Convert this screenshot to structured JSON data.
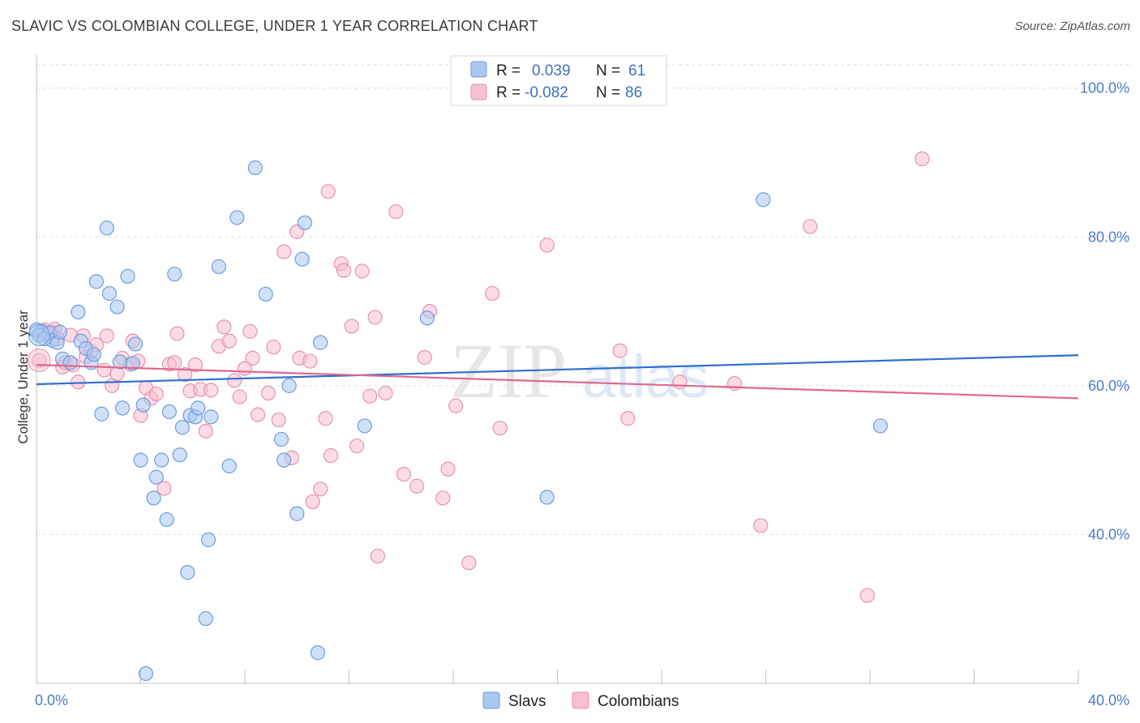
{
  "title": "SLAVIC VS COLOMBIAN COLLEGE, UNDER 1 YEAR CORRELATION CHART",
  "source": "Source: ZipAtlas.com",
  "watermark": {
    "zip": "ZIP",
    "atlas": "atlas"
  },
  "legend": {
    "rows": [
      {
        "r_label": "R =",
        "r_value": "0.039",
        "n_label": "N =",
        "n_value": "61"
      },
      {
        "r_label": "R =",
        "r_value": "-0.082",
        "n_label": "N =",
        "n_value": "86"
      }
    ]
  },
  "bottom_legend": [
    "Slavs",
    "Colombians"
  ],
  "colors": {
    "slavs_fill": "#a9c8f0",
    "slavs_stroke": "#6d9be0",
    "slavs_line": "#2f6fcd",
    "colombians_fill": "#f7bfd0",
    "colombians_stroke": "#e891ad",
    "colombians_line": "#e0678f",
    "grid": "#dcdcdc",
    "tick_text": "#4a7cc9"
  },
  "chart_data": {
    "type": "scatter",
    "title": "SLAVIC VS COLOMBIAN COLLEGE, UNDER 1 YEAR CORRELATION CHART",
    "xlabel": "",
    "ylabel": "College, Under 1 year",
    "xlim": [
      0,
      40
    ],
    "ylim": [
      20,
      104
    ],
    "x_tick_labels": [
      "0.0%",
      "40.0%"
    ],
    "y_ticks": [
      40,
      60,
      80,
      100
    ],
    "y_tick_labels": [
      "40.0%",
      "60.0%",
      "80.0%",
      "100.0%"
    ],
    "grid": true,
    "legend_position": "top-center",
    "series": [
      {
        "name": "Slavs",
        "r": 0.039,
        "n": 61,
        "trend": {
          "x": [
            0,
            40
          ],
          "y": [
            60.2,
            64.1
          ]
        },
        "points": [
          [
            0.2,
            67.3
          ],
          [
            0.5,
            67.1
          ],
          [
            0.6,
            66.1
          ],
          [
            0.8,
            65.8
          ],
          [
            0.9,
            67.2
          ],
          [
            1.0,
            63.6
          ],
          [
            1.3,
            63.1
          ],
          [
            1.6,
            69.9
          ],
          [
            1.7,
            66.0
          ],
          [
            1.9,
            65.0
          ],
          [
            2.1,
            63.1
          ],
          [
            2.2,
            64.2
          ],
          [
            2.3,
            74.0
          ],
          [
            2.5,
            56.2
          ],
          [
            2.7,
            81.2
          ],
          [
            2.8,
            72.4
          ],
          [
            3.1,
            70.6
          ],
          [
            3.2,
            63.2
          ],
          [
            3.3,
            57.0
          ],
          [
            3.5,
            74.7
          ],
          [
            3.7,
            63.0
          ],
          [
            3.8,
            65.6
          ],
          [
            4.0,
            50.0
          ],
          [
            4.1,
            57.4
          ],
          [
            4.2,
            21.3
          ],
          [
            4.5,
            44.9
          ],
          [
            4.6,
            47.7
          ],
          [
            4.8,
            50.0
          ],
          [
            5.0,
            42.0
          ],
          [
            5.1,
            56.5
          ],
          [
            5.3,
            75.0
          ],
          [
            5.5,
            50.7
          ],
          [
            5.6,
            54.4
          ],
          [
            5.8,
            34.9
          ],
          [
            5.9,
            56.0
          ],
          [
            6.1,
            55.8
          ],
          [
            6.2,
            57.0
          ],
          [
            6.5,
            28.7
          ],
          [
            6.6,
            39.3
          ],
          [
            6.7,
            55.8
          ],
          [
            7.0,
            76.0
          ],
          [
            7.4,
            49.2
          ],
          [
            7.7,
            82.6
          ],
          [
            8.4,
            89.3
          ],
          [
            8.8,
            72.3
          ],
          [
            9.4,
            52.8
          ],
          [
            9.5,
            50.0
          ],
          [
            9.7,
            60.0
          ],
          [
            10.0,
            42.8
          ],
          [
            10.2,
            77.0
          ],
          [
            10.3,
            81.9
          ],
          [
            10.8,
            24.1
          ],
          [
            10.9,
            65.8
          ],
          [
            12.6,
            54.6
          ],
          [
            15.0,
            69.1
          ],
          [
            19.6,
            45.0
          ],
          [
            27.9,
            85.0
          ],
          [
            32.4,
            54.6
          ],
          [
            0.0,
            67.5
          ],
          [
            0.1,
            66.8
          ],
          [
            0.3,
            66.3
          ]
        ]
      },
      {
        "name": "Colombians",
        "r": -0.082,
        "n": 86,
        "trend": {
          "x": [
            0,
            40
          ],
          "y": [
            62.8,
            58.3
          ]
        },
        "points": [
          [
            0.1,
            63.4
          ],
          [
            0.3,
            67.5
          ],
          [
            0.4,
            66.9
          ],
          [
            0.6,
            67.2
          ],
          [
            0.7,
            67.6
          ],
          [
            0.8,
            66.3
          ],
          [
            1.0,
            62.5
          ],
          [
            1.1,
            63.1
          ],
          [
            1.3,
            66.8
          ],
          [
            1.4,
            62.8
          ],
          [
            1.6,
            60.5
          ],
          [
            1.8,
            66.7
          ],
          [
            1.9,
            63.9
          ],
          [
            2.1,
            64.6
          ],
          [
            2.3,
            65.5
          ],
          [
            2.6,
            62.1
          ],
          [
            2.7,
            66.7
          ],
          [
            2.9,
            60.0
          ],
          [
            3.1,
            61.6
          ],
          [
            3.3,
            63.7
          ],
          [
            3.6,
            62.9
          ],
          [
            3.7,
            66.0
          ],
          [
            3.9,
            63.3
          ],
          [
            4.0,
            56.0
          ],
          [
            4.2,
            59.7
          ],
          [
            4.4,
            58.3
          ],
          [
            4.6,
            58.9
          ],
          [
            4.9,
            46.2
          ],
          [
            5.1,
            62.9
          ],
          [
            5.3,
            63.1
          ],
          [
            5.4,
            67.0
          ],
          [
            5.7,
            61.5
          ],
          [
            5.9,
            59.3
          ],
          [
            6.1,
            62.8
          ],
          [
            6.3,
            59.5
          ],
          [
            6.5,
            53.9
          ],
          [
            6.7,
            59.4
          ],
          [
            7.0,
            65.3
          ],
          [
            7.2,
            67.9
          ],
          [
            7.4,
            66.0
          ],
          [
            7.6,
            60.7
          ],
          [
            7.8,
            58.5
          ],
          [
            8.0,
            62.3
          ],
          [
            8.2,
            67.3
          ],
          [
            8.3,
            63.7
          ],
          [
            8.5,
            56.1
          ],
          [
            8.9,
            59.0
          ],
          [
            9.1,
            65.2
          ],
          [
            9.3,
            55.4
          ],
          [
            9.5,
            78.0
          ],
          [
            9.8,
            50.3
          ],
          [
            10.0,
            80.7
          ],
          [
            10.1,
            63.7
          ],
          [
            10.5,
            63.3
          ],
          [
            10.6,
            44.4
          ],
          [
            10.9,
            46.1
          ],
          [
            11.1,
            55.6
          ],
          [
            11.2,
            86.1
          ],
          [
            11.3,
            50.6
          ],
          [
            11.7,
            76.4
          ],
          [
            11.8,
            75.5
          ],
          [
            12.1,
            68.0
          ],
          [
            12.3,
            51.9
          ],
          [
            12.5,
            75.4
          ],
          [
            12.8,
            58.6
          ],
          [
            13.0,
            69.2
          ],
          [
            13.1,
            37.1
          ],
          [
            13.4,
            59.0
          ],
          [
            13.8,
            83.4
          ],
          [
            14.1,
            48.1
          ],
          [
            14.6,
            46.5
          ],
          [
            14.9,
            63.8
          ],
          [
            15.1,
            70.0
          ],
          [
            15.6,
            44.9
          ],
          [
            15.8,
            48.8
          ],
          [
            16.1,
            57.3
          ],
          [
            16.6,
            36.2
          ],
          [
            17.5,
            72.4
          ],
          [
            17.8,
            54.3
          ],
          [
            19.6,
            78.9
          ],
          [
            22.4,
            64.7
          ],
          [
            22.7,
            55.6
          ],
          [
            24.7,
            60.5
          ],
          [
            26.8,
            60.3
          ],
          [
            29.7,
            81.4
          ],
          [
            34.0,
            90.5
          ]
        ]
      }
    ]
  },
  "extra_points_colombians": [
    [
      27.8,
      41.2
    ],
    [
      31.9,
      31.8
    ]
  ]
}
